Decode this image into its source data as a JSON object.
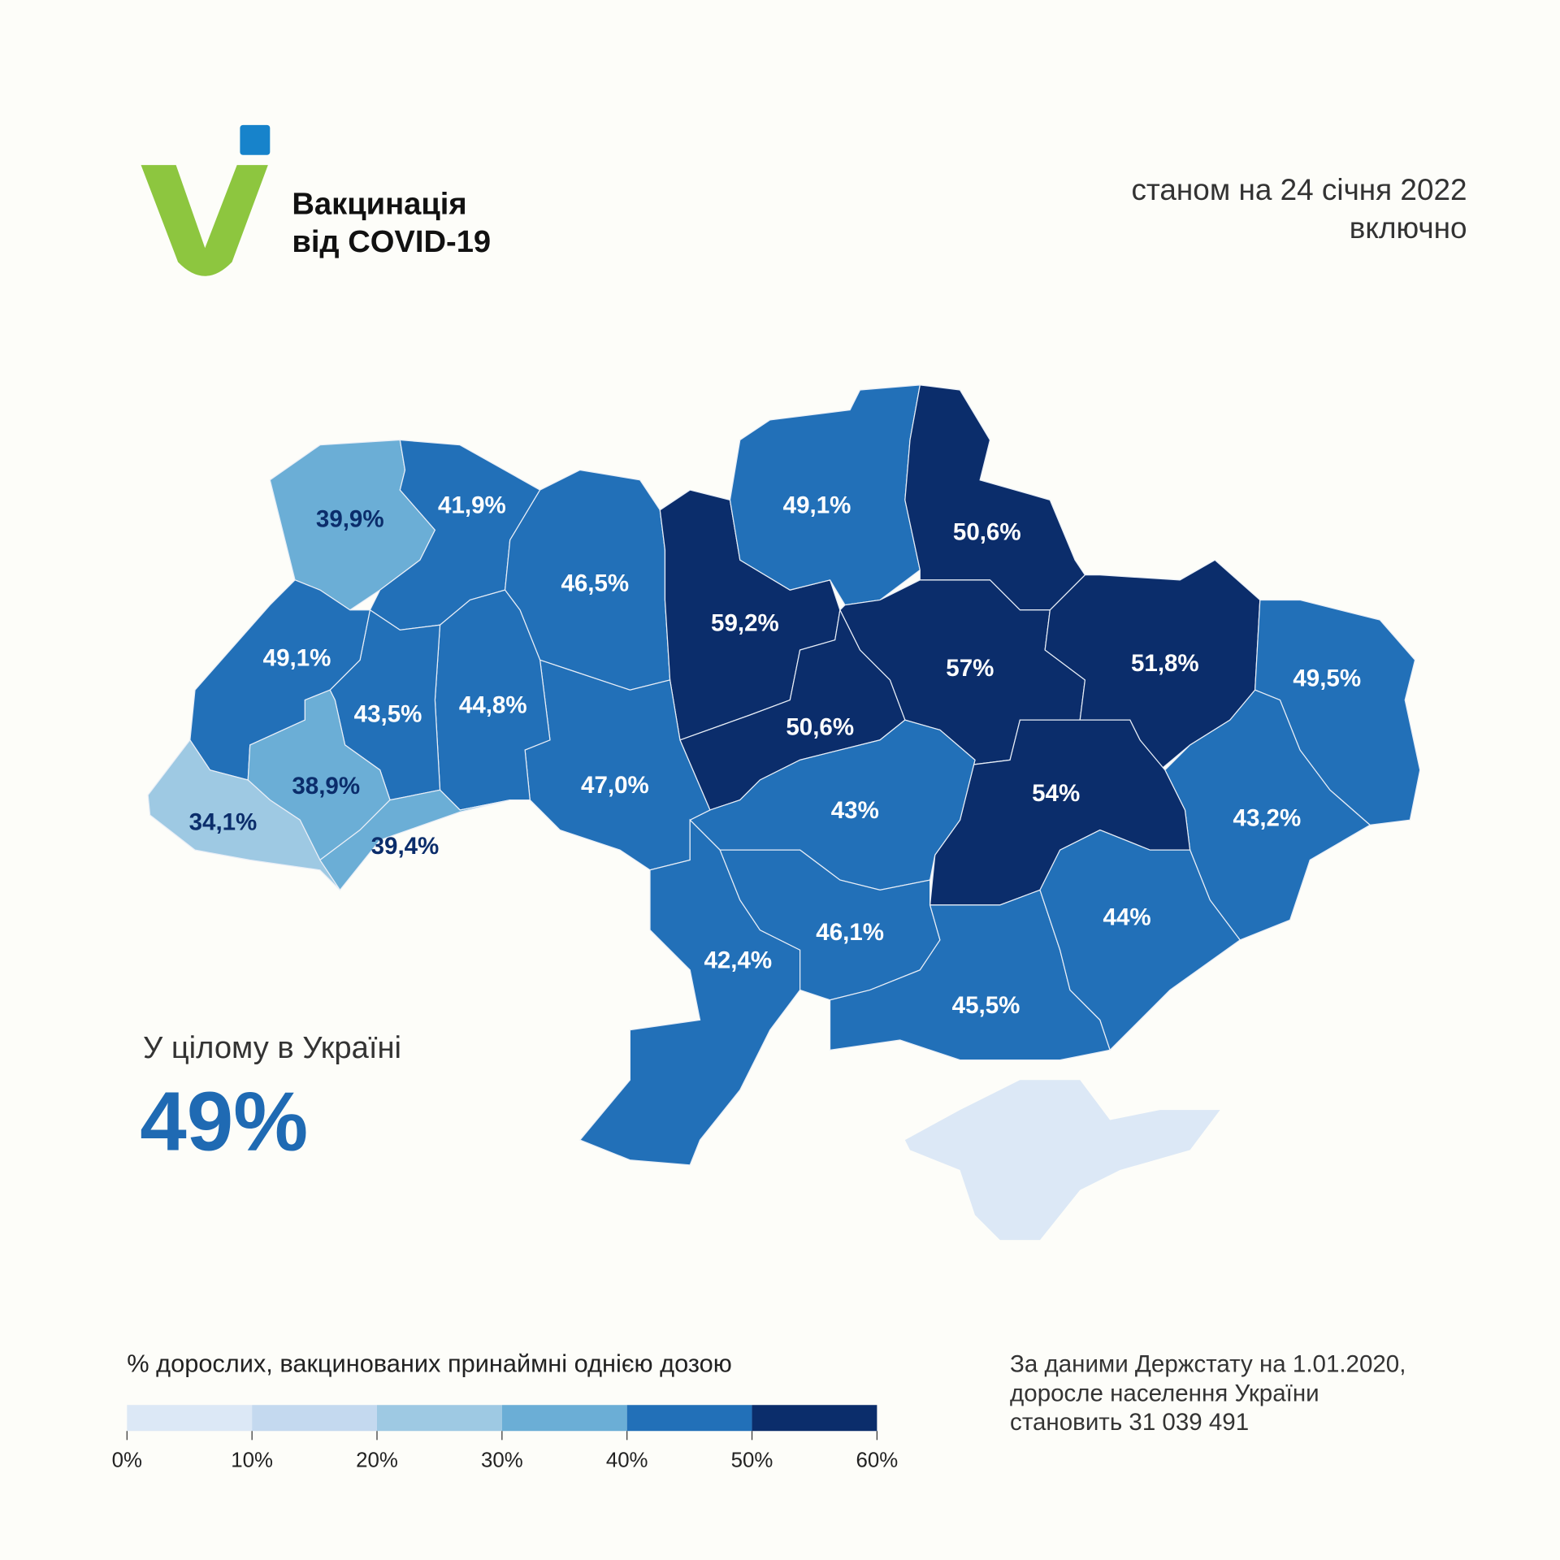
{
  "header": {
    "title_line1": "Вакцинація",
    "title_line2": "від COVID-19",
    "date_line1": "станом на 24 січня 2022",
    "date_line2": "включно"
  },
  "logo": {
    "green": "#8dc63f",
    "blue": "#1783cb"
  },
  "summary": {
    "label": "У цілому в Україні",
    "value": "49%"
  },
  "legend": {
    "title": "% дорослих, вакцинованих принаймні однією дозою",
    "ticks": [
      "0%",
      "10%",
      "20%",
      "30%",
      "40%",
      "50%",
      "60%"
    ],
    "colors": [
      "#dce8f6",
      "#c4d9ef",
      "#9ec9e3",
      "#6baed6",
      "#2270b8",
      "#0b2d6b"
    ]
  },
  "note": {
    "line1": "За даними Держстату на 1.01.2020,",
    "line2": "доросле населення України",
    "line3": "становить 31 039 491"
  },
  "chart_data": {
    "type": "choropleth",
    "title": "",
    "unit": "%",
    "scale": {
      "min": 0,
      "max": 60,
      "step": 10
    },
    "regions": [
      {
        "label": "39,9%",
        "value": 39.9,
        "color": "#6baed6",
        "text_color": "#0b2d6b"
      },
      {
        "label": "41,9%",
        "value": 41.9,
        "color": "#2270b8",
        "text_color": "#ffffff"
      },
      {
        "label": "46,5%",
        "value": 46.5,
        "color": "#2270b8",
        "text_color": "#ffffff"
      },
      {
        "label": "59,2%",
        "value": 59.2,
        "color": "#0b2d6b",
        "text_color": "#ffffff"
      },
      {
        "label": "49,1%",
        "value": 49.1,
        "color": "#2270b8",
        "text_color": "#ffffff"
      },
      {
        "label": "50,6%",
        "value": 50.6,
        "color": "#0b2d6b",
        "text_color": "#ffffff"
      },
      {
        "label": "57%",
        "value": 57,
        "color": "#0b2d6b",
        "text_color": "#ffffff"
      },
      {
        "label": "51,8%",
        "value": 51.8,
        "color": "#0b2d6b",
        "text_color": "#ffffff"
      },
      {
        "label": "49,5%",
        "value": 49.5,
        "color": "#2270b8",
        "text_color": "#ffffff"
      },
      {
        "label": "43,2%",
        "value": 43.2,
        "color": "#2270b8",
        "text_color": "#ffffff"
      },
      {
        "label": "54%",
        "value": 54,
        "color": "#0b2d6b",
        "text_color": "#ffffff"
      },
      {
        "label": "50,6%",
        "value": 50.6,
        "color": "#0b2d6b",
        "text_color": "#ffffff"
      },
      {
        "label": "43%",
        "value": 43,
        "color": "#2270b8",
        "text_color": "#ffffff"
      },
      {
        "label": "47,0%",
        "value": 47.0,
        "color": "#2270b8",
        "text_color": "#ffffff"
      },
      {
        "label": "44,8%",
        "value": 44.8,
        "color": "#2270b8",
        "text_color": "#ffffff"
      },
      {
        "label": "43,5%",
        "value": 43.5,
        "color": "#2270b8",
        "text_color": "#ffffff"
      },
      {
        "label": "49,1%",
        "value": 49.1,
        "color": "#2270b8",
        "text_color": "#ffffff"
      },
      {
        "label": "38,9%",
        "value": 38.9,
        "color": "#6baed6",
        "text_color": "#0b2d6b"
      },
      {
        "label": "34,1%",
        "value": 34.1,
        "color": "#9ec9e3",
        "text_color": "#0b2d6b"
      },
      {
        "label": "39,4%",
        "value": 39.4,
        "color": "#6baed6",
        "text_color": "#0b2d6b"
      },
      {
        "label": "42,4%",
        "value": 42.4,
        "color": "#2270b8",
        "text_color": "#ffffff"
      },
      {
        "label": "46,1%",
        "value": 46.1,
        "color": "#2270b8",
        "text_color": "#ffffff"
      },
      {
        "label": "45,5%",
        "value": 45.5,
        "color": "#2270b8",
        "text_color": "#ffffff"
      },
      {
        "label": "44%",
        "value": 44,
        "color": "#2270b8",
        "text_color": "#ffffff"
      }
    ],
    "no_data_color": "#dce8f6"
  }
}
